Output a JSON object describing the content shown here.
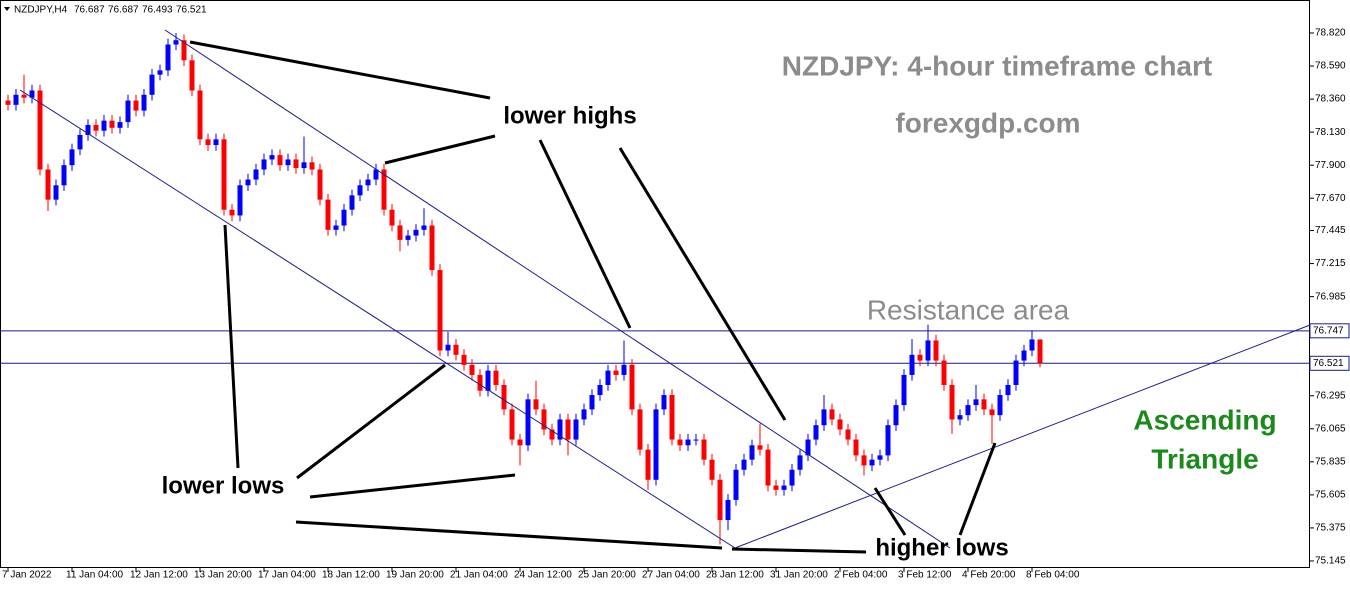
{
  "chart_data": {
    "type": "candlestick",
    "symbol": "NZDJPY,H4",
    "title": "NZDJPY: 4-hour timeframe chart",
    "subtitle": "forexgdp.com",
    "annotations": {
      "lower_highs": "lower highs",
      "lower_lows": "lower lows",
      "higher_lows": "higher lows",
      "resistance": "Resistance area",
      "pattern_line1": "Ascending",
      "pattern_line2": "Triangle"
    },
    "up_color": "#0000ff",
    "down_color": "#ff0000",
    "price_lines": [
      76.747,
      76.521
    ],
    "ylim": [
      75.096,
      79.015
    ],
    "yticks": [
      75.145,
      75.375,
      75.605,
      75.835,
      76.065,
      76.295,
      76.985,
      77.215,
      77.445,
      {
        "value": 77.67,
        "label": "77.670"
      },
      {
        "value": 77.9,
        "label": "77.900"
      },
      {
        "value": 78.13,
        "label": "78.130"
      },
      {
        "value": 78.36,
        "label": "78.360"
      },
      {
        "value": 78.59,
        "label": "78.590"
      },
      {
        "value": 78.82,
        "label": "78.820"
      }
    ],
    "categories": [
      "7 Jan 2022",
      null,
      null,
      null,
      null,
      null,
      null,
      null,
      "11 Jan 04:00",
      null,
      null,
      null,
      null,
      null,
      null,
      null,
      "12 Jan 12:00",
      null,
      null,
      null,
      null,
      null,
      null,
      null,
      "13 Jan 20:00",
      null,
      null,
      null,
      null,
      null,
      null,
      null,
      "17 Jan 04:00",
      null,
      null,
      null,
      null,
      null,
      null,
      null,
      "18 Jan 12:00",
      null,
      null,
      null,
      null,
      null,
      null,
      null,
      "19 Jan 20:00",
      null,
      null,
      null,
      null,
      null,
      null,
      null,
      "21 Jan 04:00",
      null,
      null,
      null,
      null,
      null,
      null,
      null,
      "24 Jan 12:00",
      null,
      null,
      null,
      null,
      null,
      null,
      null,
      "25 Jan 20:00",
      null,
      null,
      null,
      null,
      null,
      null,
      null,
      "27 Jan 04:00",
      null,
      null,
      null,
      null,
      null,
      null,
      null,
      "28 Jan 12:00",
      null,
      null,
      null,
      null,
      null,
      null,
      null,
      "31 Jan 20:00",
      null,
      null,
      null,
      null,
      null,
      null,
      null,
      "2 Feb 04:00",
      null,
      null,
      null,
      null,
      null,
      null,
      null,
      "3 Feb 12:00",
      null,
      null,
      null,
      null,
      null,
      null,
      null,
      "4 Feb 20:00",
      null,
      null,
      null,
      null,
      null,
      null,
      null,
      "8 Feb 04:00",
      null
    ],
    "open": [
      78.35,
      78.32,
      78.39,
      78.37,
      78.42,
      77.87,
      77.66,
      77.76,
      77.9,
      78.01,
      78.11,
      78.18,
      78.14,
      78.21,
      78.16,
      78.2,
      78.35,
      78.28,
      78.39,
      78.53,
      78.56,
      78.74,
      78.77,
      78.63,
      78.42,
      78.08,
      78.04,
      78.08,
      77.59,
      77.55,
      77.76,
      77.8,
      77.87,
      77.94,
      77.97,
      77.9,
      77.94,
      77.88,
      77.92,
      77.87,
      77.66,
      77.45,
      77.48,
      77.59,
      77.69,
      77.76,
      77.8,
      77.87,
      77.59,
      77.48,
      77.38,
      77.41,
      77.45,
      77.48,
      77.17,
      76.61,
      76.65,
      76.58,
      76.51,
      76.44,
      76.33,
      76.47,
      76.37,
      76.2,
      75.99,
      75.95,
      76.27,
      76.2,
      76.06,
      75.99,
      76.13,
      75.99,
      76.13,
      76.2,
      76.3,
      76.37,
      76.47,
      76.44,
      76.51,
      76.2,
      75.92,
      75.71,
      76.2,
      76.3,
      75.99,
      75.95,
      75.99,
      75.99,
      75.85,
      75.71,
      75.43,
      75.57,
      75.78,
      75.85,
      75.95,
      75.92,
      75.67,
      75.64,
      75.67,
      75.78,
      75.88,
      75.99,
      76.09,
      76.2,
      76.13,
      76.06,
      75.99,
      75.88,
      75.81,
      75.85,
      75.88,
      76.09,
      76.23,
      76.44,
      76.58,
      76.54,
      76.68,
      76.54,
      76.37,
      76.13,
      76.16,
      76.23,
      76.27,
      76.2,
      76.16,
      76.3,
      76.37,
      76.54,
      76.61,
      76.687
    ],
    "high": [
      78.39,
      78.43,
      78.53,
      78.46,
      78.46,
      77.91,
      77.8,
      77.94,
      78.05,
      78.15,
      78.22,
      78.22,
      78.25,
      78.25,
      78.24,
      78.39,
      78.39,
      78.43,
      78.57,
      78.6,
      78.78,
      78.82,
      78.81,
      78.67,
      78.46,
      78.12,
      78.12,
      78.12,
      77.63,
      77.8,
      77.84,
      77.91,
      77.98,
      78.01,
      78.01,
      77.98,
      77.98,
      78.1,
      77.96,
      77.91,
      77.7,
      77.52,
      77.63,
      77.73,
      77.8,
      77.84,
      77.91,
      77.91,
      77.63,
      77.52,
      77.45,
      77.49,
      77.6,
      77.52,
      77.21,
      76.74,
      76.69,
      76.62,
      76.55,
      76.48,
      76.51,
      76.51,
      76.41,
      76.24,
      76.03,
      76.31,
      76.4,
      76.24,
      76.1,
      76.17,
      76.17,
      76.17,
      76.24,
      76.34,
      76.41,
      76.51,
      76.51,
      76.68,
      76.55,
      76.24,
      75.96,
      76.24,
      76.34,
      76.34,
      76.03,
      76.03,
      76.03,
      76.03,
      75.89,
      75.75,
      75.61,
      75.82,
      75.89,
      75.99,
      76.1,
      75.96,
      75.71,
      75.71,
      75.82,
      75.92,
      76.03,
      76.13,
      76.3,
      76.24,
      76.17,
      76.1,
      76.03,
      75.92,
      75.89,
      75.92,
      76.13,
      76.27,
      76.48,
      76.69,
      76.62,
      76.79,
      76.72,
      76.58,
      76.41,
      76.2,
      76.27,
      76.37,
      76.31,
      76.24,
      76.34,
      76.41,
      76.58,
      76.65,
      76.75,
      76.687
    ],
    "low": [
      78.28,
      78.28,
      78.33,
      78.33,
      77.83,
      77.58,
      77.62,
      77.72,
      77.86,
      77.97,
      78.07,
      78.1,
      78.1,
      78.12,
      78.12,
      78.16,
      78.24,
      78.24,
      78.35,
      78.49,
      78.52,
      78.7,
      78.59,
      78.38,
      78.04,
      78.0,
      78.0,
      77.55,
      77.51,
      77.51,
      77.72,
      77.76,
      77.83,
      77.9,
      77.86,
      77.86,
      77.84,
      77.84,
      77.83,
      77.62,
      77.41,
      77.41,
      77.44,
      77.55,
      77.65,
      77.72,
      77.76,
      77.55,
      77.44,
      77.3,
      77.34,
      77.37,
      77.41,
      77.13,
      76.57,
      76.57,
      76.54,
      76.47,
      76.4,
      76.29,
      76.29,
      76.33,
      76.16,
      75.95,
      75.81,
      75.91,
      76.16,
      76.02,
      75.95,
      75.95,
      75.88,
      75.95,
      76.09,
      76.16,
      76.26,
      76.33,
      76.4,
      76.4,
      76.16,
      75.88,
      75.64,
      75.67,
      76.16,
      75.95,
      75.91,
      75.91,
      75.95,
      75.81,
      75.67,
      75.26,
      75.36,
      75.53,
      75.74,
      75.81,
      75.88,
      75.63,
      75.6,
      75.6,
      75.63,
      75.74,
      75.84,
      75.95,
      76.05,
      76.09,
      76.02,
      75.95,
      75.84,
      75.74,
      75.77,
      75.81,
      75.84,
      76.05,
      76.19,
      76.4,
      76.5,
      76.5,
      76.5,
      76.33,
      76.03,
      76.09,
      76.12,
      76.19,
      76.16,
      75.96,
      76.12,
      76.26,
      76.33,
      76.5,
      76.57,
      76.493
    ],
    "close": [
      78.32,
      78.39,
      78.37,
      78.42,
      77.87,
      77.66,
      77.76,
      77.9,
      78.01,
      78.11,
      78.18,
      78.14,
      78.21,
      78.16,
      78.2,
      78.35,
      78.28,
      78.39,
      78.53,
      78.56,
      78.74,
      78.77,
      78.63,
      78.42,
      78.08,
      78.04,
      78.08,
      77.59,
      77.55,
      77.76,
      77.8,
      77.87,
      77.94,
      77.97,
      77.9,
      77.94,
      77.88,
      77.92,
      77.87,
      77.66,
      77.45,
      77.48,
      77.59,
      77.69,
      77.76,
      77.8,
      77.87,
      77.59,
      77.48,
      77.38,
      77.41,
      77.45,
      77.48,
      77.17,
      76.61,
      76.65,
      76.58,
      76.51,
      76.44,
      76.33,
      76.47,
      76.37,
      76.2,
      75.99,
      75.95,
      76.27,
      76.2,
      76.06,
      75.99,
      76.13,
      75.99,
      76.13,
      76.2,
      76.3,
      76.37,
      76.47,
      76.44,
      76.51,
      76.2,
      75.92,
      75.71,
      76.2,
      76.3,
      75.99,
      75.95,
      75.99,
      75.99,
      75.85,
      75.71,
      75.43,
      75.57,
      75.78,
      75.85,
      75.95,
      75.92,
      75.67,
      75.64,
      75.67,
      75.78,
      75.88,
      75.99,
      76.09,
      76.2,
      76.13,
      76.06,
      75.99,
      75.88,
      75.81,
      75.85,
      75.88,
      76.09,
      76.23,
      76.44,
      76.58,
      76.54,
      76.68,
      76.54,
      76.37,
      76.13,
      76.16,
      76.23,
      76.27,
      76.2,
      76.16,
      76.3,
      76.37,
      76.54,
      76.61,
      76.687,
      76.521
    ]
  }
}
